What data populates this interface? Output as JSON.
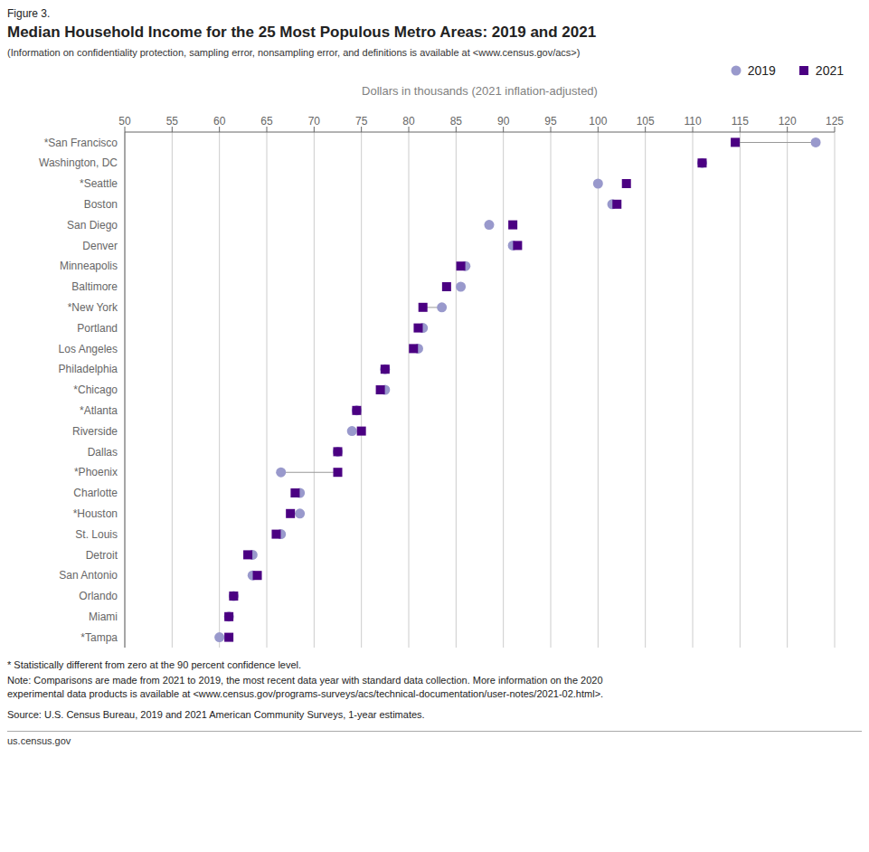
{
  "chart_data": {
    "type": "dot",
    "figure_label": "Figure 3.",
    "title": "Median Household Income for the 25 Most Populous Metro Areas: 2019 and 2021",
    "subtitle": "(Information on confidentiality protection, sampling error, nonsampling error, and definitions is available at <www.census.gov/acs>)",
    "xlabel": "Dollars in thousands (2021 inflation-adjusted)",
    "footnotes": [
      "* Statistically different from zero at the 90 percent confidence level.",
      "Note: Comparisons are made from 2021 to 2019, the most recent data year with standard data collection. More information on the 2020\nexperimental data products is available at <www.census.gov/programs-surveys/acs/technical-documentation/user-notes/2021-02.html>.",
      "Source: U.S. Census Bureau, 2019 and 2021 American Community Surveys, 1-year estimates."
    ],
    "source_label": "us.census.gov",
    "xlim": [
      50,
      125
    ],
    "xticks": [
      50,
      55,
      60,
      65,
      70,
      75,
      80,
      85,
      90,
      95,
      100,
      105,
      110,
      115,
      120,
      125
    ],
    "grid": true,
    "legend": "upper right",
    "categories": [
      "*San Francisco",
      "Washington, DC",
      "*Seattle",
      "Boston",
      "San Diego",
      "Denver",
      "Minneapolis",
      "Baltimore",
      "*New York",
      "Portland",
      "Los Angeles",
      "Philadelphia",
      "*Chicago",
      "*Atlanta",
      "Riverside",
      "Dallas",
      "*Phoenix",
      "Charlotte",
      "*Houston",
      "St. Louis",
      "Detroit",
      "San Antonio",
      "Orlando",
      "Miami",
      "*Tampa"
    ],
    "series": [
      {
        "name": "2019",
        "color": "#9999cc",
        "marker": "circle",
        "values": [
          123.0,
          111.0,
          100.0,
          101.5,
          88.5,
          91.0,
          86.0,
          85.5,
          83.5,
          81.5,
          81.0,
          77.5,
          77.5,
          74.5,
          74.0,
          72.5,
          66.5,
          68.5,
          68.5,
          66.5,
          63.5,
          63.5,
          61.5,
          61.0,
          60.0
        ]
      },
      {
        "name": "2021",
        "color": "#4B0082",
        "marker": "square",
        "values": [
          114.5,
          111.0,
          103.0,
          102.0,
          91.0,
          91.5,
          85.5,
          84.0,
          81.5,
          81.0,
          80.5,
          77.5,
          77.0,
          74.5,
          75.0,
          72.5,
          72.5,
          68.0,
          67.5,
          66.0,
          63.0,
          64.0,
          61.5,
          61.0,
          61.0
        ]
      }
    ],
    "connectors": [
      true,
      false,
      false,
      false,
      false,
      false,
      false,
      false,
      true,
      false,
      false,
      false,
      false,
      false,
      false,
      false,
      true,
      false,
      true,
      false,
      false,
      false,
      false,
      false,
      false
    ]
  }
}
